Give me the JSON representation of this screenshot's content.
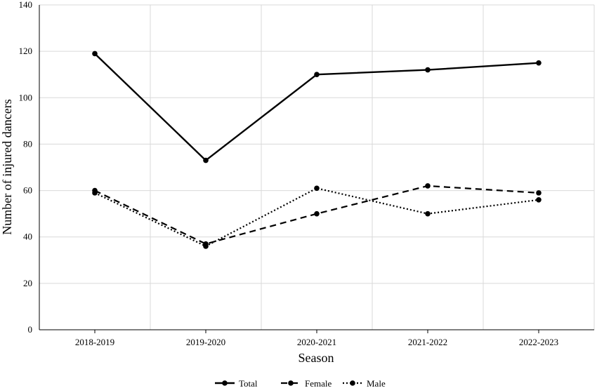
{
  "chart_data": {
    "type": "line",
    "title": "",
    "xlabel": "Season",
    "ylabel": "Number of injured dancers",
    "categories": [
      "2018-2019",
      "2019-2020",
      "2020-2021",
      "2021-2022",
      "2022-2023"
    ],
    "ylim": [
      0,
      140
    ],
    "yticks": [
      0,
      20,
      40,
      60,
      80,
      100,
      120,
      140
    ],
    "grid": true,
    "legend_position": "bottom-center",
    "series": [
      {
        "name": "Total",
        "style": "solid",
        "values": [
          119,
          73,
          110,
          112,
          115
        ]
      },
      {
        "name": "Female",
        "style": "dashed",
        "values": [
          60,
          37,
          50,
          62,
          59
        ]
      },
      {
        "name": "Male",
        "style": "dotted",
        "values": [
          59,
          36,
          61,
          50,
          56
        ]
      }
    ],
    "colors": {
      "line": "#000000",
      "grid": "#d9d9d9",
      "axis": "#000000"
    }
  }
}
